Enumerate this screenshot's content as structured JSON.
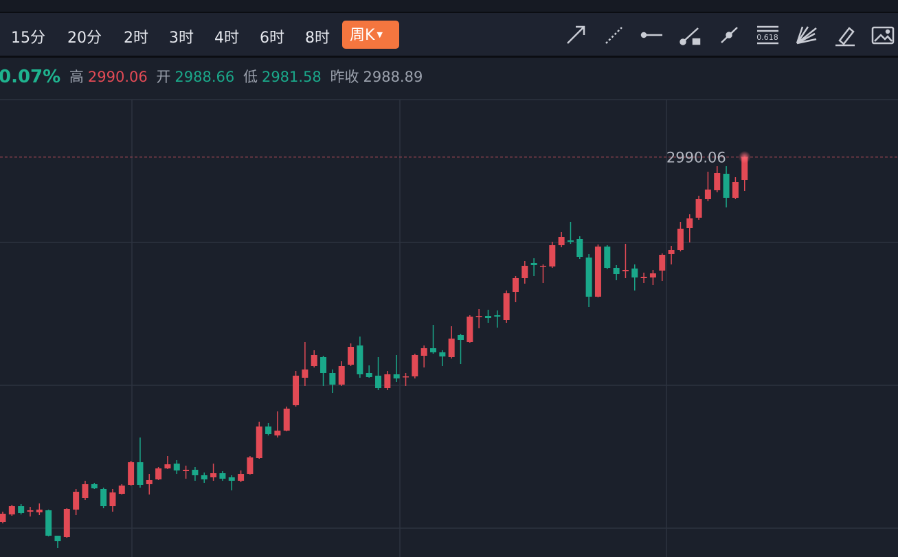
{
  "toolbar": {
    "periods": [
      "15分",
      "20分",
      "2时",
      "3时",
      "4时",
      "6时",
      "8时"
    ],
    "active": "周K",
    "fib_label": "0.618"
  },
  "quote": {
    "change": "0.07%",
    "high_label": "高",
    "high": "2990.06",
    "open_label": "开",
    "open": "2988.66",
    "low_label": "低",
    "low": "2981.58",
    "prev_label": "昨收",
    "prev": "2988.89"
  },
  "chart_data": {
    "type": "candlestick",
    "up_color": "#e24a55",
    "down_color": "#1aa88a",
    "ylim": [
      2873.6,
      3006.8
    ],
    "price_line": 2990.06,
    "open": [
      2883.8,
      2886.0,
      2888.4,
      2886.8,
      2886.6,
      2887.2,
      2879.8,
      2879.4,
      2887.4,
      2890.8,
      2894.8,
      2893.4,
      2888.4,
      2892.0,
      2894.6,
      2901.2,
      2894.8,
      2896.2,
      2899.4,
      2900.8,
      2898.6,
      2899.0,
      2897.4,
      2896.8,
      2898.0,
      2896.8,
      2895.8,
      2897.8,
      2902.4,
      2911.6,
      2909.0,
      2910.4,
      2917.8,
      2925.8,
      2929.2,
      2931.8,
      2927.2,
      2923.8,
      2929.6,
      2935.2,
      2927.2,
      2926.4,
      2922.8,
      2926.8,
      2926.0,
      2926.2,
      2932.2,
      2934.4,
      2933.2,
      2931.8,
      2938.2,
      2936.2,
      2943.6,
      2943.8,
      2944.0,
      2942.6,
      2950.8,
      2954.8,
      2959.2,
      2958.2,
      2958.2,
      2964.4,
      2965.8,
      2966.2,
      2960.8,
      2949.4,
      2964.0,
      2957.8,
      2956.8,
      2957.6,
      2954.8,
      2955.0,
      2957.0,
      2961.8,
      2963.0,
      2969.4,
      2972.4,
      2977.8,
      2980.4,
      2985.2,
      2978.2,
      2983.4
    ],
    "high": [
      2886.8,
      2888.8,
      2889.0,
      2888.2,
      2889.2,
      2887.4,
      2879.8,
      2887.8,
      2893.4,
      2895.8,
      2895.2,
      2893.8,
      2893.4,
      2894.8,
      2901.6,
      2908.4,
      2897.8,
      2899.8,
      2903.0,
      2901.8,
      2900.2,
      2899.8,
      2898.2,
      2900.8,
      2898.6,
      2897.4,
      2898.8,
      2903.0,
      2913.0,
      2912.6,
      2916.0,
      2917.4,
      2927.8,
      2936.2,
      2933.8,
      2932.2,
      2928.2,
      2930.6,
      2935.8,
      2937.8,
      2929.4,
      2931.8,
      2927.8,
      2932.4,
      2927.2,
      2932.8,
      2935.2,
      2941.2,
      2933.8,
      2940.8,
      2938.6,
      2944.0,
      2945.8,
      2945.6,
      2945.4,
      2951.2,
      2955.4,
      2959.8,
      2960.6,
      2958.8,
      2965.4,
      2968.2,
      2971.2,
      2967.0,
      2961.8,
      2964.6,
      2964.4,
      2958.6,
      2964.8,
      2958.8,
      2956.4,
      2957.2,
      2962.0,
      2964.2,
      2971.2,
      2973.4,
      2978.8,
      2985.8,
      2987.4,
      2987.4,
      2984.2,
      2990.06
    ],
    "low": [
      2883.4,
      2885.6,
      2886.0,
      2885.4,
      2885.8,
      2879.6,
      2876.2,
      2879.2,
      2885.8,
      2890.2,
      2893.4,
      2887.8,
      2886.8,
      2891.8,
      2894.4,
      2893.8,
      2891.8,
      2896.0,
      2899.2,
      2897.8,
      2896.4,
      2895.8,
      2895.2,
      2895.8,
      2895.8,
      2893.0,
      2895.4,
      2897.6,
      2902.2,
      2909.0,
      2908.4,
      2910.2,
      2917.4,
      2923.4,
      2928.8,
      2923.4,
      2921.4,
      2923.4,
      2929.2,
      2925.8,
      2925.8,
      2922.2,
      2922.2,
      2924.6,
      2923.4,
      2925.6,
      2928.8,
      2932.8,
      2929.2,
      2931.4,
      2929.8,
      2936.0,
      2940.2,
      2941.8,
      2940.4,
      2941.8,
      2947.8,
      2953.2,
      2955.4,
      2953.4,
      2957.8,
      2963.8,
      2964.8,
      2960.4,
      2946.4,
      2949.2,
      2957.4,
      2954.2,
      2954.8,
      2951.2,
      2953.4,
      2952.8,
      2954.0,
      2958.8,
      2962.6,
      2965.2,
      2971.8,
      2977.2,
      2979.8,
      2975.4,
      2977.8,
      2980.2
    ],
    "close": [
      2886.2,
      2888.4,
      2886.4,
      2887.2,
      2887.4,
      2879.8,
      2878.2,
      2887.6,
      2892.6,
      2894.8,
      2893.6,
      2888.4,
      2892.4,
      2894.4,
      2901.2,
      2894.6,
      2896.0,
      2899.4,
      2900.6,
      2898.8,
      2899.0,
      2897.4,
      2896.2,
      2898.0,
      2896.4,
      2895.8,
      2897.8,
      2902.6,
      2911.6,
      2909.4,
      2910.4,
      2916.8,
      2926.4,
      2928.2,
      2932.4,
      2927.2,
      2923.8,
      2929.2,
      2934.8,
      2926.8,
      2926.0,
      2922.8,
      2926.8,
      2925.6,
      2926.2,
      2932.4,
      2934.4,
      2933.2,
      2932.0,
      2937.2,
      2936.8,
      2943.6,
      2943.8,
      2943.2,
      2943.6,
      2950.4,
      2954.8,
      2958.4,
      2958.6,
      2958.4,
      2964.4,
      2966.8,
      2965.4,
      2961.0,
      2949.4,
      2964.0,
      2957.8,
      2956.0,
      2957.2,
      2955.0,
      2955.2,
      2956.2,
      2961.6,
      2963.0,
      2969.2,
      2972.2,
      2977.8,
      2980.6,
      2985.4,
      2978.2,
      2982.8,
      2990.0
    ]
  }
}
